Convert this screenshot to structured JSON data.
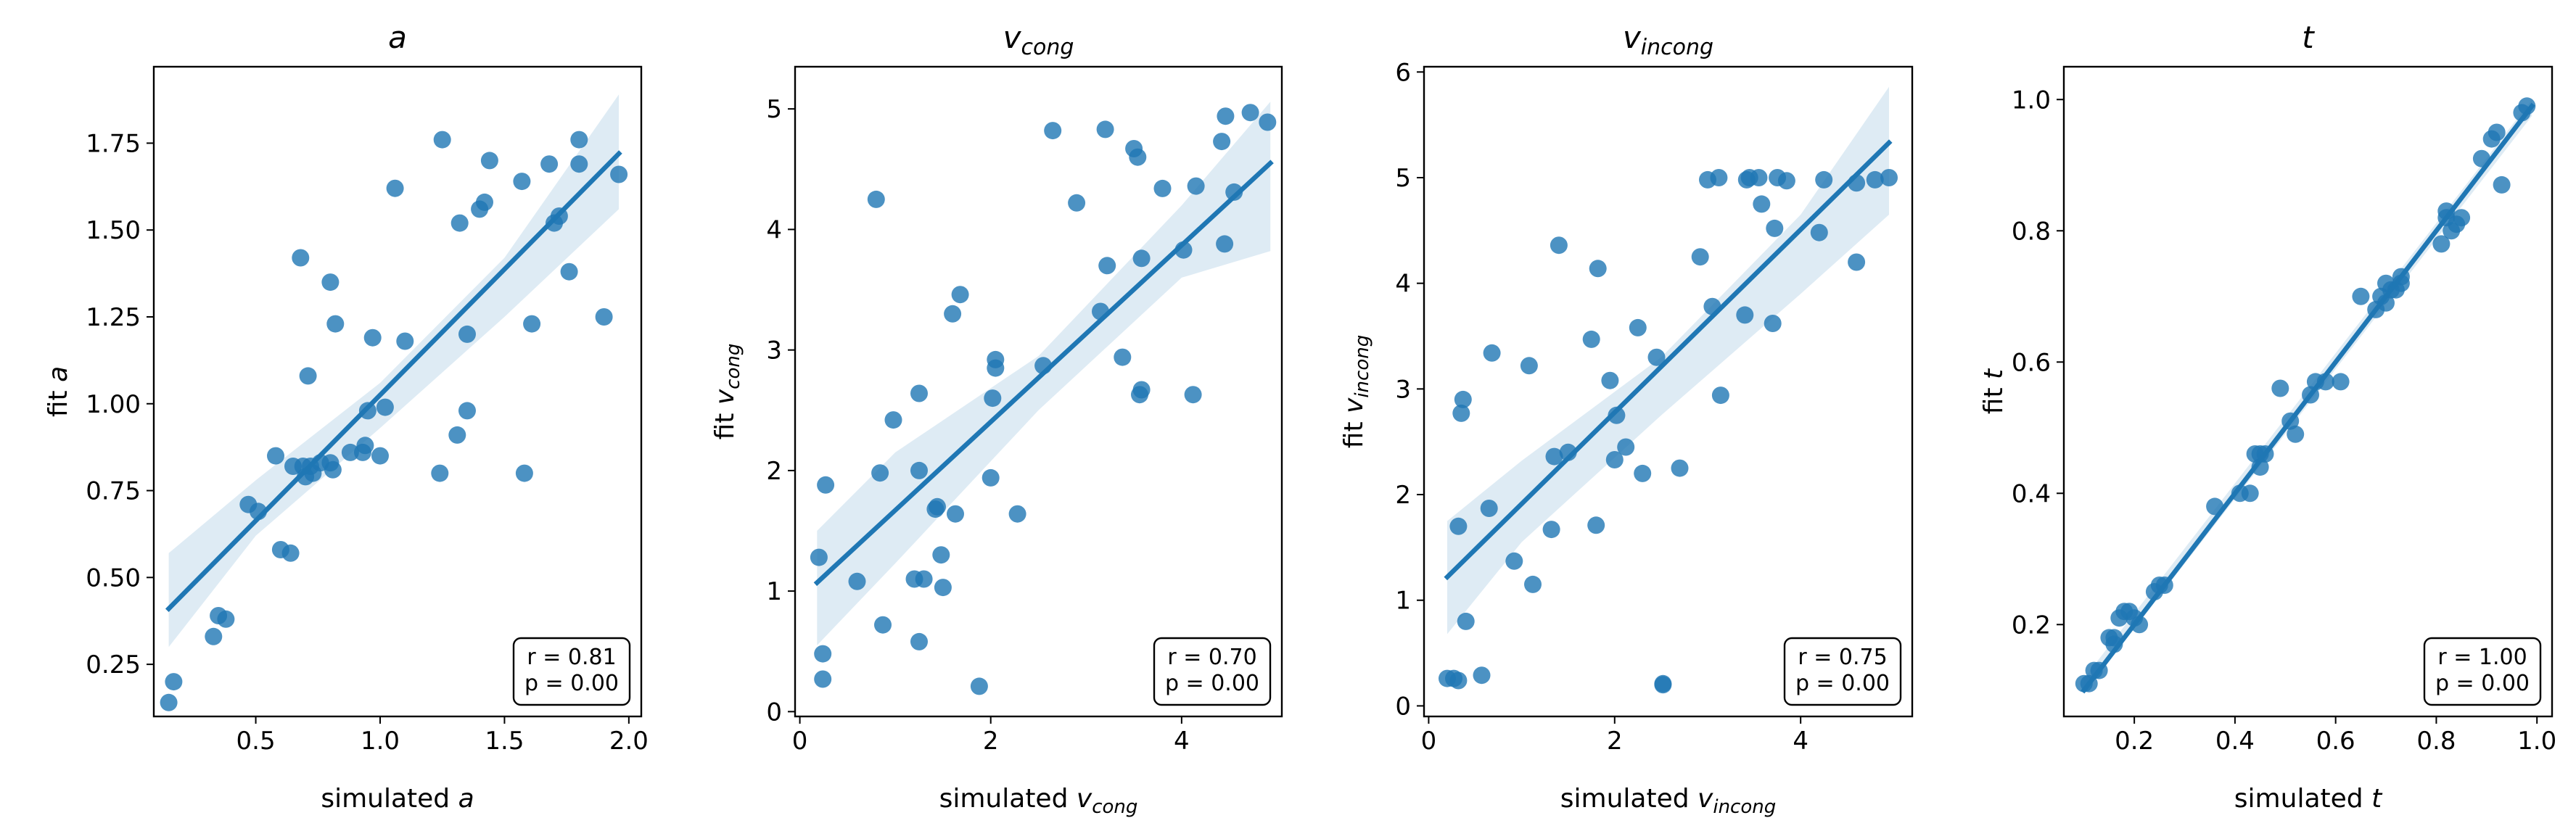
{
  "chart_data": [
    {
      "type": "scatter",
      "title_main": "a",
      "title_sub": "",
      "xlabel": "simulated",
      "xlabel_var": "a",
      "xlabel_sub": "",
      "ylabel": "fit",
      "ylabel_var": "a",
      "ylabel_sub": "",
      "xlim": [
        0.09,
        2.05
      ],
      "ylim": [
        0.1,
        1.97
      ],
      "xticks": [
        0.5,
        1.0,
        1.5,
        2.0
      ],
      "yticks": [
        0.25,
        0.5,
        0.75,
        1.0,
        1.25,
        1.5,
        1.75
      ],
      "stats": [
        "r = 0.81",
        "p = 0.00"
      ],
      "fit": {
        "x": [
          0.15,
          1.96
        ],
        "y": [
          0.41,
          1.72
        ]
      },
      "band": {
        "x": [
          0.15,
          0.5,
          1.0,
          1.5,
          1.96
        ],
        "lower": [
          0.3,
          0.62,
          0.93,
          1.25,
          1.56
        ],
        "upper": [
          0.57,
          0.78,
          1.06,
          1.42,
          1.89
        ]
      },
      "points": [
        [
          0.15,
          0.14
        ],
        [
          0.17,
          0.2
        ],
        [
          0.33,
          0.33
        ],
        [
          0.35,
          0.39
        ],
        [
          0.38,
          0.38
        ],
        [
          0.47,
          0.71
        ],
        [
          0.51,
          0.69
        ],
        [
          0.58,
          0.85
        ],
        [
          0.6,
          0.58
        ],
        [
          0.64,
          0.57
        ],
        [
          0.65,
          0.82
        ],
        [
          0.68,
          1.42
        ],
        [
          0.69,
          0.82
        ],
        [
          0.7,
          0.79
        ],
        [
          0.71,
          1.08
        ],
        [
          0.72,
          0.82
        ],
        [
          0.73,
          0.8
        ],
        [
          0.76,
          0.83
        ],
        [
          0.8,
          1.35
        ],
        [
          0.8,
          0.83
        ],
        [
          0.81,
          0.81
        ],
        [
          0.82,
          1.23
        ],
        [
          0.88,
          0.86
        ],
        [
          0.93,
          0.86
        ],
        [
          0.94,
          0.88
        ],
        [
          0.95,
          0.98
        ],
        [
          0.97,
          1.19
        ],
        [
          1.0,
          0.85
        ],
        [
          1.02,
          0.99
        ],
        [
          1.06,
          1.62
        ],
        [
          1.1,
          1.18
        ],
        [
          1.24,
          0.8
        ],
        [
          1.25,
          1.76
        ],
        [
          1.31,
          0.91
        ],
        [
          1.32,
          1.52
        ],
        [
          1.35,
          1.2
        ],
        [
          1.35,
          0.98
        ],
        [
          1.4,
          1.56
        ],
        [
          1.42,
          1.58
        ],
        [
          1.44,
          1.7
        ],
        [
          1.57,
          1.64
        ],
        [
          1.58,
          0.8
        ],
        [
          1.61,
          1.23
        ],
        [
          1.68,
          1.69
        ],
        [
          1.7,
          1.52
        ],
        [
          1.72,
          1.54
        ],
        [
          1.76,
          1.38
        ],
        [
          1.8,
          1.76
        ],
        [
          1.8,
          1.69
        ],
        [
          1.9,
          1.25
        ],
        [
          1.96,
          1.66
        ]
      ]
    },
    {
      "type": "scatter",
      "title_main": "v",
      "title_sub": "cong",
      "xlabel": "simulated",
      "xlabel_var": "v",
      "xlabel_sub": "cong",
      "ylabel": "fit",
      "ylabel_var": "v",
      "ylabel_sub": "cong",
      "xlim": [
        -0.05,
        5.05
      ],
      "ylim": [
        -0.04,
        5.35
      ],
      "xticks": [
        0,
        2,
        4
      ],
      "yticks": [
        0,
        1,
        2,
        3,
        4,
        5
      ],
      "stats": [
        "r = 0.70",
        "p = 0.00"
      ],
      "fit": {
        "x": [
          0.18,
          4.93
        ],
        "y": [
          1.07,
          4.55
        ]
      },
      "band": {
        "x": [
          0.18,
          1.0,
          2.5,
          4.0,
          4.93
        ],
        "lower": [
          0.55,
          1.23,
          2.5,
          3.6,
          3.82
        ],
        "upper": [
          1.5,
          2.15,
          2.95,
          4.2,
          5.06
        ]
      },
      "points": [
        [
          0.2,
          1.28
        ],
        [
          0.24,
          0.27
        ],
        [
          0.24,
          0.48
        ],
        [
          0.27,
          1.88
        ],
        [
          0.6,
          1.08
        ],
        [
          0.8,
          4.25
        ],
        [
          0.84,
          1.98
        ],
        [
          0.87,
          0.72
        ],
        [
          0.98,
          2.42
        ],
        [
          1.2,
          1.1
        ],
        [
          1.25,
          0.58
        ],
        [
          1.25,
          2.64
        ],
        [
          1.25,
          2.0
        ],
        [
          1.3,
          1.1
        ],
        [
          1.42,
          1.68
        ],
        [
          1.44,
          1.7
        ],
        [
          1.48,
          1.3
        ],
        [
          1.5,
          1.03
        ],
        [
          1.6,
          3.3
        ],
        [
          1.63,
          1.64
        ],
        [
          1.68,
          3.46
        ],
        [
          1.88,
          0.21
        ],
        [
          2.0,
          1.94
        ],
        [
          2.02,
          2.6
        ],
        [
          2.05,
          2.92
        ],
        [
          2.05,
          2.85
        ],
        [
          2.28,
          1.64
        ],
        [
          2.55,
          2.87
        ],
        [
          2.65,
          4.82
        ],
        [
          2.9,
          4.22
        ],
        [
          3.15,
          3.32
        ],
        [
          3.2,
          4.83
        ],
        [
          3.22,
          3.7
        ],
        [
          3.38,
          2.94
        ],
        [
          3.5,
          4.67
        ],
        [
          3.54,
          4.6
        ],
        [
          3.56,
          2.63
        ],
        [
          3.58,
          2.67
        ],
        [
          3.58,
          3.76
        ],
        [
          3.8,
          4.34
        ],
        [
          4.02,
          3.83
        ],
        [
          4.12,
          2.63
        ],
        [
          4.15,
          4.36
        ],
        [
          4.42,
          4.73
        ],
        [
          4.45,
          3.88
        ],
        [
          4.46,
          4.94
        ],
        [
          4.55,
          4.31
        ],
        [
          4.72,
          4.97
        ],
        [
          4.9,
          4.89
        ]
      ]
    },
    {
      "type": "scatter",
      "title_main": "v",
      "title_sub": "incong",
      "xlabel": "simulated",
      "xlabel_var": "v",
      "xlabel_sub": "incong",
      "ylabel": "fit",
      "ylabel_var": "v",
      "ylabel_sub": "incong",
      "xlim": [
        -0.05,
        5.2
      ],
      "ylim": [
        -0.1,
        6.05
      ],
      "xticks": [
        0,
        2,
        4
      ],
      "yticks": [
        0,
        1,
        2,
        3,
        4,
        5,
        6
      ],
      "stats": [
        "r = 0.75",
        "p = 0.00"
      ],
      "fit": {
        "x": [
          0.2,
          4.95
        ],
        "y": [
          1.22,
          5.33
        ]
      },
      "band": {
        "x": [
          0.2,
          1.0,
          2.5,
          4.0,
          4.95
        ],
        "lower": [
          0.68,
          1.55,
          2.75,
          3.9,
          4.65
        ],
        "upper": [
          1.75,
          2.32,
          3.3,
          4.65,
          5.86
        ]
      },
      "points": [
        [
          0.2,
          0.26
        ],
        [
          0.27,
          0.26
        ],
        [
          0.32,
          0.24
        ],
        [
          0.32,
          1.7
        ],
        [
          0.35,
          2.77
        ],
        [
          0.37,
          2.9
        ],
        [
          0.4,
          0.8
        ],
        [
          0.57,
          0.29
        ],
        [
          0.65,
          1.87
        ],
        [
          0.68,
          3.34
        ],
        [
          0.92,
          1.37
        ],
        [
          1.08,
          3.22
        ],
        [
          1.12,
          1.15
        ],
        [
          1.32,
          1.67
        ],
        [
          1.35,
          2.36
        ],
        [
          1.4,
          4.36
        ],
        [
          1.5,
          2.4
        ],
        [
          1.75,
          3.47
        ],
        [
          1.8,
          1.71
        ],
        [
          1.82,
          4.14
        ],
        [
          1.95,
          3.08
        ],
        [
          2.0,
          2.33
        ],
        [
          2.02,
          2.75
        ],
        [
          2.12,
          2.45
        ],
        [
          2.25,
          3.58
        ],
        [
          2.3,
          2.2
        ],
        [
          2.45,
          3.3
        ],
        [
          2.52,
          0.21
        ],
        [
          2.52,
          0.2
        ],
        [
          2.7,
          2.25
        ],
        [
          2.92,
          4.25
        ],
        [
          3.0,
          4.98
        ],
        [
          3.05,
          3.78
        ],
        [
          3.12,
          5.0
        ],
        [
          3.14,
          2.94
        ],
        [
          3.4,
          3.7
        ],
        [
          3.42,
          4.98
        ],
        [
          3.45,
          5.0
        ],
        [
          3.55,
          5.0
        ],
        [
          3.58,
          4.75
        ],
        [
          3.7,
          3.62
        ],
        [
          3.72,
          4.52
        ],
        [
          3.75,
          5.0
        ],
        [
          3.85,
          4.97
        ],
        [
          4.2,
          4.48
        ],
        [
          4.25,
          4.98
        ],
        [
          4.6,
          4.2
        ],
        [
          4.6,
          4.95
        ],
        [
          4.8,
          4.98
        ],
        [
          4.95,
          5.0
        ]
      ]
    },
    {
      "type": "scatter",
      "title_main": "t",
      "title_sub": "",
      "xlabel": "simulated",
      "xlabel_var": "t",
      "xlabel_sub": "",
      "ylabel": "fit",
      "ylabel_var": "t",
      "ylabel_sub": "",
      "xlim": [
        0.06,
        1.03
      ],
      "ylim": [
        0.06,
        1.05
      ],
      "xticks": [
        0.2,
        0.4,
        0.6,
        0.8,
        1.0
      ],
      "yticks": [
        0.2,
        0.4,
        0.6,
        0.8,
        1.0
      ],
      "stats": [
        "r = 1.00",
        "p = 0.00"
      ],
      "fit": {
        "x": [
          0.1,
          0.99
        ],
        "y": [
          0.1,
          0.99
        ]
      },
      "band": {
        "x": [
          0.1,
          0.99
        ],
        "lower": [
          0.095,
          0.975
        ],
        "upper": [
          0.118,
          1.0
        ]
      },
      "points": [
        [
          0.1,
          0.11
        ],
        [
          0.11,
          0.11
        ],
        [
          0.12,
          0.13
        ],
        [
          0.13,
          0.13
        ],
        [
          0.15,
          0.18
        ],
        [
          0.16,
          0.18
        ],
        [
          0.16,
          0.17
        ],
        [
          0.17,
          0.21
        ],
        [
          0.18,
          0.22
        ],
        [
          0.19,
          0.22
        ],
        [
          0.2,
          0.21
        ],
        [
          0.21,
          0.2
        ],
        [
          0.24,
          0.25
        ],
        [
          0.25,
          0.26
        ],
        [
          0.26,
          0.26
        ],
        [
          0.36,
          0.38
        ],
        [
          0.41,
          0.4
        ],
        [
          0.43,
          0.4
        ],
        [
          0.44,
          0.46
        ],
        [
          0.45,
          0.46
        ],
        [
          0.45,
          0.44
        ],
        [
          0.46,
          0.46
        ],
        [
          0.49,
          0.56
        ],
        [
          0.51,
          0.51
        ],
        [
          0.52,
          0.49
        ],
        [
          0.55,
          0.55
        ],
        [
          0.56,
          0.57
        ],
        [
          0.58,
          0.57
        ],
        [
          0.61,
          0.57
        ],
        [
          0.65,
          0.7
        ],
        [
          0.68,
          0.68
        ],
        [
          0.69,
          0.7
        ],
        [
          0.7,
          0.69
        ],
        [
          0.7,
          0.72
        ],
        [
          0.71,
          0.71
        ],
        [
          0.72,
          0.71
        ],
        [
          0.73,
          0.73
        ],
        [
          0.73,
          0.72
        ],
        [
          0.81,
          0.78
        ],
        [
          0.82,
          0.82
        ],
        [
          0.82,
          0.83
        ],
        [
          0.83,
          0.8
        ],
        [
          0.84,
          0.81
        ],
        [
          0.85,
          0.82
        ],
        [
          0.89,
          0.91
        ],
        [
          0.91,
          0.94
        ],
        [
          0.92,
          0.95
        ],
        [
          0.93,
          0.87
        ],
        [
          0.97,
          0.98
        ],
        [
          0.98,
          0.99
        ]
      ]
    }
  ],
  "style": {
    "marker_color": "#1f77b4",
    "line_color": "#1f77b4",
    "band_color": "#1f77b4"
  }
}
